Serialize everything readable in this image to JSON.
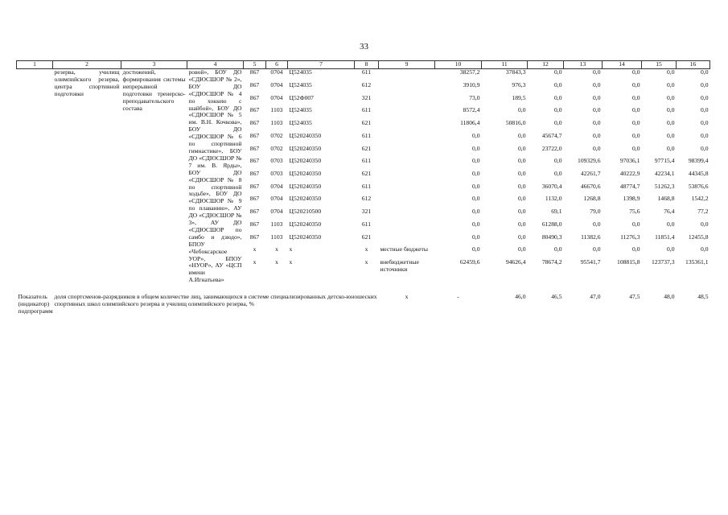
{
  "page_number": "33",
  "table": {
    "header": [
      "1",
      "2",
      "3",
      "4",
      "5",
      "6",
      "7",
      "8",
      "9",
      "10",
      "11",
      "12",
      "13",
      "14",
      "15",
      "16"
    ],
    "program": {
      "col2": "резерва, училищ олимпийского резерва, центра спортивной подготовки",
      "col3": "достижений, формирования системы непрерывной подготовки тренерско-преподавательского состава",
      "col4": "ровой», БОУ ДО «СДЮСШОР № 2», БОУ ДО «СДЮСШОР № 4 по хоккею с шайбой», БОУ ДО «СДЮСШОР № 5 им. В.Н. Кочкова», БОУ ДО «СДЮСШОР № 6 по спортивной гимнастике», БОУ ДО «СДЮСШОР № 7 им. В. Ярды», БОУ ДО «СДЮСШОР № 8 по спортивной ходьбе», БОУ ДО «СДЮСШОР № 9 по плаванию», АУ ДО «СДЮСШОР № 3», АУ ДО «СДЮСШОР по самбо и дзюдо», БПОУ «Чебоксарское УОР», БПОУ «НУОР», АУ «ЦСП имени А.Игнатьева»"
    },
    "rows": [
      {
        "codes": [
          "867",
          "0704",
          "Ц524035",
          "611"
        ],
        "amounts": [
          "38257,2",
          "37843,3",
          "0,0",
          "0,0",
          "0,0",
          "0,0",
          "0,0"
        ]
      },
      {
        "codes": [
          "867",
          "0704",
          "Ц524035",
          "612"
        ],
        "amounts": [
          "3910,9",
          "976,3",
          "0,0",
          "0,0",
          "0,0",
          "0,0",
          "0,0"
        ]
      },
      {
        "codes": [
          "867",
          "0704",
          "Ц52Ф007",
          "321"
        ],
        "amounts": [
          "73,0",
          "189,5",
          "0,0",
          "0,0",
          "0,0",
          "0,0",
          "0,0"
        ]
      },
      {
        "codes": [
          "867",
          "1103",
          "Ц524035",
          "611"
        ],
        "amounts": [
          "8572,4",
          "0,0",
          "0,0",
          "0,0",
          "0,0",
          "0,0",
          "0,0"
        ]
      },
      {
        "codes": [
          "867",
          "1103",
          "Ц524035",
          "621"
        ],
        "amounts": [
          "11806,4",
          "50816,0",
          "0,0",
          "0,0",
          "0,0",
          "0,0",
          "0,0"
        ]
      },
      {
        "codes": [
          "867",
          "0702",
          "Ц520240350",
          "611"
        ],
        "amounts": [
          "0,0",
          "0,0",
          "45674,7",
          "0,0",
          "0,0",
          "0,0",
          "0,0"
        ]
      },
      {
        "codes": [
          "867",
          "0702",
          "Ц520240350",
          "621"
        ],
        "amounts": [
          "0,0",
          "0,0",
          "23722,0",
          "0,0",
          "0,0",
          "0,0",
          "0,0"
        ]
      },
      {
        "codes": [
          "867",
          "0703",
          "Ц520240350",
          "611"
        ],
        "amounts": [
          "0,0",
          "0,0",
          "0,0",
          "109329,6",
          "97036,1",
          "97715,4",
          "98399,4"
        ]
      },
      {
        "codes": [
          "867",
          "0703",
          "Ц520240350",
          "621"
        ],
        "amounts": [
          "0,0",
          "0,0",
          "0,0",
          "42261,7",
          "40222,9",
          "42234,1",
          "44345,8"
        ]
      },
      {
        "codes": [
          "867",
          "0704",
          "Ц520240350",
          "611"
        ],
        "amounts": [
          "0,0",
          "0,0",
          "36070,4",
          "46670,6",
          "48774,7",
          "51262,3",
          "53876,6"
        ]
      },
      {
        "codes": [
          "867",
          "0704",
          "Ц520240350",
          "612"
        ],
        "amounts": [
          "0,0",
          "0,0",
          "1132,0",
          "1268,8",
          "1398,9",
          "1468,8",
          "1542,2"
        ]
      },
      {
        "codes": [
          "867",
          "0704",
          "Ц520210500",
          "321"
        ],
        "amounts": [
          "0,0",
          "0,0",
          "69,1",
          "79,0",
          "75,6",
          "76,4",
          "77,2"
        ]
      },
      {
        "codes": [
          "867",
          "1103",
          "Ц520240350",
          "611"
        ],
        "amounts": [
          "0,0",
          "0,0",
          "61288,0",
          "0,0",
          "0,0",
          "0,0",
          "0,0"
        ]
      },
      {
        "codes": [
          "867",
          "1103",
          "Ц520240350",
          "621"
        ],
        "amounts": [
          "0,0",
          "0,0",
          "80490,3",
          "11382,6",
          "11276,3",
          "11851,4",
          "12455,8"
        ]
      },
      {
        "codes": [
          "x",
          "x",
          "x",
          "x"
        ],
        "source": "местные бюджеты",
        "amounts": [
          "0,0",
          "0,0",
          "0,0",
          "0,0",
          "0,0",
          "0,0",
          "0,0"
        ]
      },
      {
        "codes": [
          "x",
          "x",
          "x",
          "x"
        ],
        "source": "внебюджетные источники",
        "amounts": [
          "62459,6",
          "94626,4",
          "78674,2",
          "95541,7",
          "108815,8",
          "123737,3",
          "135361,1"
        ]
      }
    ],
    "indicator": {
      "label": "Показатель (индикатор) подпрограммы,",
      "description": "доля спортсменов-разрядников в общем количестве лиц, занимающихся в системе специализированных детско-юношеских спортивных школ олимпийского резерва и училищ олимпийского резерва, %",
      "col9": "x",
      "col10": "-",
      "values": [
        "46,0",
        "46,5",
        "47,0",
        "47,5",
        "48,0",
        "48,5"
      ]
    }
  }
}
